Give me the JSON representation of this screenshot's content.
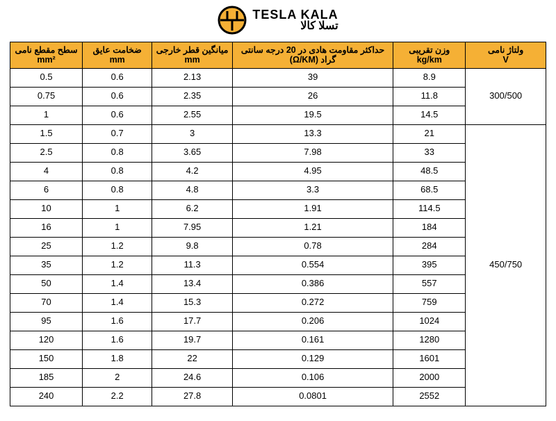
{
  "logo": {
    "english": "TESLA KALA",
    "farsi": "تسلا کالا",
    "icon_bg": "#f5b035",
    "icon_stroke": "#000000"
  },
  "table": {
    "header_bg": "#f5b035",
    "border_color": "#000000",
    "columns": [
      {
        "fa": "سطح مقطع نامی",
        "unit": "mm²"
      },
      {
        "fa": "ضخامت عایق",
        "unit": "mm"
      },
      {
        "fa": "میانگین قطر خارجی",
        "unit": "mm"
      },
      {
        "fa": "حداکثر مقاومت هادی در 20 درجه سانتی گراد (Ω/KM)",
        "unit": ""
      },
      {
        "fa": "وزن تقریبی",
        "unit": "kg/km"
      },
      {
        "fa": "ولتاژ نامی",
        "unit": "V"
      }
    ],
    "voltages": [
      "300/500",
      "450/750"
    ],
    "rows": [
      {
        "cs": "0.5",
        "ins": "0.6",
        "od": "2.13",
        "res": "39",
        "wt": "8.9"
      },
      {
        "cs": "0.75",
        "ins": "0.6",
        "od": "2.35",
        "res": "26",
        "wt": "11.8"
      },
      {
        "cs": "1",
        "ins": "0.6",
        "od": "2.55",
        "res": "19.5",
        "wt": "14.5"
      },
      {
        "cs": "1.5",
        "ins": "0.7",
        "od": "3",
        "res": "13.3",
        "wt": "21"
      },
      {
        "cs": "2.5",
        "ins": "0.8",
        "od": "3.65",
        "res": "7.98",
        "wt": "33"
      },
      {
        "cs": "4",
        "ins": "0.8",
        "od": "4.2",
        "res": "4.95",
        "wt": "48.5"
      },
      {
        "cs": "6",
        "ins": "0.8",
        "od": "4.8",
        "res": "3.3",
        "wt": "68.5"
      },
      {
        "cs": "10",
        "ins": "1",
        "od": "6.2",
        "res": "1.91",
        "wt": "114.5"
      },
      {
        "cs": "16",
        "ins": "1",
        "od": "7.95",
        "res": "1.21",
        "wt": "184"
      },
      {
        "cs": "25",
        "ins": "1.2",
        "od": "9.8",
        "res": "0.78",
        "wt": "284"
      },
      {
        "cs": "35",
        "ins": "1.2",
        "od": "11.3",
        "res": "0.554",
        "wt": "395"
      },
      {
        "cs": "50",
        "ins": "1.4",
        "od": "13.4",
        "res": "0.386",
        "wt": "557"
      },
      {
        "cs": "70",
        "ins": "1.4",
        "od": "15.3",
        "res": "0.272",
        "wt": "759"
      },
      {
        "cs": "95",
        "ins": "1.6",
        "od": "17.7",
        "res": "0.206",
        "wt": "1024"
      },
      {
        "cs": "120",
        "ins": "1.6",
        "od": "19.7",
        "res": "0.161",
        "wt": "1280"
      },
      {
        "cs": "150",
        "ins": "1.8",
        "od": "22",
        "res": "0.129",
        "wt": "1601"
      },
      {
        "cs": "185",
        "ins": "2",
        "od": "24.6",
        "res": "0.106",
        "wt": "2000"
      },
      {
        "cs": "240",
        "ins": "2.2",
        "od": "27.8",
        "res": "0.0801",
        "wt": "2552"
      }
    ]
  }
}
